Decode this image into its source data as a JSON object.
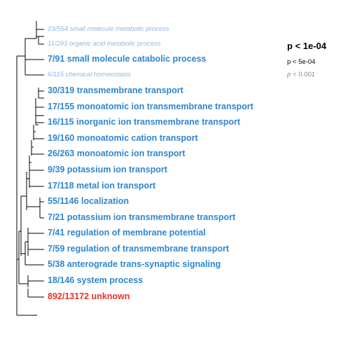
{
  "terms": [
    {
      "label": "23/554 small molecule metabolic process",
      "style": "small"
    },
    {
      "label": "11/293 organic acid metabolic process",
      "style": "small"
    },
    {
      "label": "7/91 small molecule catabolic process",
      "style": "big"
    },
    {
      "label": "6/115 chemical homeostasis",
      "style": "small"
    },
    {
      "label": "30/319 transmembrane transport",
      "style": "big"
    },
    {
      "label": "17/155 monoatomic ion transmembrane transport",
      "style": "big"
    },
    {
      "label": "16/115 inorganic ion transmembrane transport",
      "style": "big"
    },
    {
      "label": "19/160 monoatomic cation transport",
      "style": "big"
    },
    {
      "label": "26/263 monoatomic ion transport",
      "style": "big"
    },
    {
      "label": "9/39 potassium ion transport",
      "style": "big"
    },
    {
      "label": "17/118 metal ion transport",
      "style": "big"
    },
    {
      "label": "55/1146 localization",
      "style": "big"
    },
    {
      "label": "7/21 potassium ion transmembrane transport",
      "style": "big"
    },
    {
      "label": "7/41 regulation of membrane potential",
      "style": "big"
    },
    {
      "label": "7/59 regulation of transmembrane transport",
      "style": "big"
    },
    {
      "label": "5/38 anterograde trans-synaptic signaling",
      "style": "big"
    },
    {
      "label": "18/146 system process",
      "style": "big"
    },
    {
      "label": "892/13172 unknown",
      "style": "red"
    }
  ],
  "legend": {
    "p1": "p < 1e-04",
    "p2": "p < 5e-04",
    "p3": "p < 0.001"
  },
  "colors": {
    "significant": "#2e86cf",
    "faded": "#8fb8e0",
    "unknown": "#e8302a",
    "tree": "#000000"
  }
}
